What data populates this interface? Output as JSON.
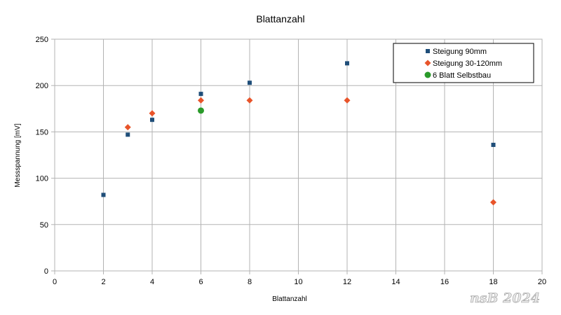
{
  "chart_data": {
    "type": "scatter",
    "title": "Blattanzahl",
    "xlabel": "Blattanzahl",
    "ylabel": "Messspannung [mV]",
    "xlim": [
      0,
      20
    ],
    "ylim": [
      0,
      250
    ],
    "x_ticks": [
      0,
      2,
      4,
      6,
      8,
      10,
      12,
      14,
      16,
      18,
      20
    ],
    "y_ticks": [
      0,
      50,
      100,
      150,
      200,
      250
    ],
    "grid": true,
    "legend_position": "top-right",
    "series": [
      {
        "name": "Steigung 90mm",
        "color": "#1f4e79",
        "marker": "square",
        "points": [
          [
            2,
            82
          ],
          [
            3,
            147
          ],
          [
            4,
            163
          ],
          [
            6,
            191
          ],
          [
            8,
            203
          ],
          [
            12,
            224
          ],
          [
            18,
            136
          ]
        ]
      },
      {
        "name": "Steigung 30-120mm",
        "color": "#e8542a",
        "marker": "diamond",
        "points": [
          [
            3,
            155
          ],
          [
            4,
            170
          ],
          [
            6,
            184
          ],
          [
            8,
            184
          ],
          [
            12,
            184
          ],
          [
            18,
            74
          ]
        ]
      },
      {
        "name": "6 Blatt Selbstbau",
        "color": "#2a9a2a",
        "marker": "circle",
        "points": [
          [
            6,
            173
          ]
        ]
      }
    ]
  },
  "watermark": "nsB 2024"
}
